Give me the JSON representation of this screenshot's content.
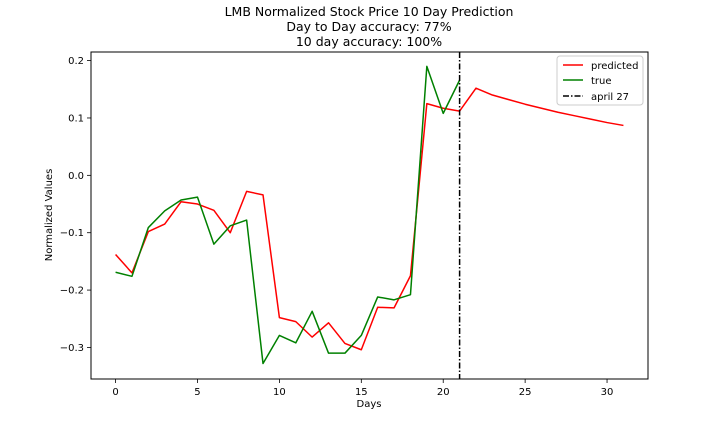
{
  "chart_data": {
    "type": "line",
    "title_lines": [
      "LMB Normalized Stock Price 10 Day Prediction",
      "Day to Day accuracy: 77%",
      "10 day accuracy: 100%"
    ],
    "xlabel": "Days",
    "ylabel": "Normalized Values",
    "xlim": [
      -1.5,
      32.5
    ],
    "ylim": [
      -0.355,
      0.215
    ],
    "xticks": [
      0,
      5,
      10,
      15,
      20,
      25,
      30
    ],
    "yticks": [
      -0.3,
      -0.2,
      -0.1,
      0.0,
      0.1,
      0.2
    ],
    "ytick_labels": [
      "−0.3",
      "−0.2",
      "−0.1",
      "0.0",
      "0.1",
      "0.2"
    ],
    "legend_position": "top-right",
    "series": [
      {
        "name": "predicted",
        "color": "#ff0000",
        "x": [
          0,
          1,
          2,
          3,
          4,
          5,
          6,
          7,
          8,
          9,
          10,
          11,
          12,
          13,
          14,
          15,
          16,
          17,
          18,
          19,
          20,
          21,
          22,
          23,
          24,
          25,
          26,
          27,
          28,
          29,
          30,
          31
        ],
        "y": [
          -0.138,
          -0.17,
          -0.098,
          -0.085,
          -0.046,
          -0.05,
          -0.061,
          -0.1,
          -0.028,
          -0.034,
          -0.248,
          -0.255,
          -0.282,
          -0.257,
          -0.293,
          -0.304,
          -0.23,
          -0.231,
          -0.175,
          0.125,
          0.117,
          0.112,
          0.152,
          0.14,
          0.132,
          0.124,
          0.117,
          0.11,
          0.104,
          0.098,
          0.092,
          0.087
        ]
      },
      {
        "name": "true",
        "color": "#008000",
        "x": [
          0,
          1,
          2,
          3,
          4,
          5,
          6,
          7,
          8,
          9,
          10,
          11,
          12,
          13,
          14,
          15,
          16,
          17,
          18,
          19,
          20,
          21
        ],
        "y": [
          -0.169,
          -0.176,
          -0.091,
          -0.062,
          -0.043,
          -0.038,
          -0.12,
          -0.088,
          -0.078,
          -0.328,
          -0.279,
          -0.292,
          -0.237,
          -0.31,
          -0.31,
          -0.279,
          -0.212,
          -0.217,
          -0.208,
          0.19,
          0.108,
          0.166
        ]
      }
    ],
    "vlines": [
      {
        "name": "april 27",
        "x": 21,
        "color": "#000000",
        "style": "dashdot"
      }
    ]
  }
}
